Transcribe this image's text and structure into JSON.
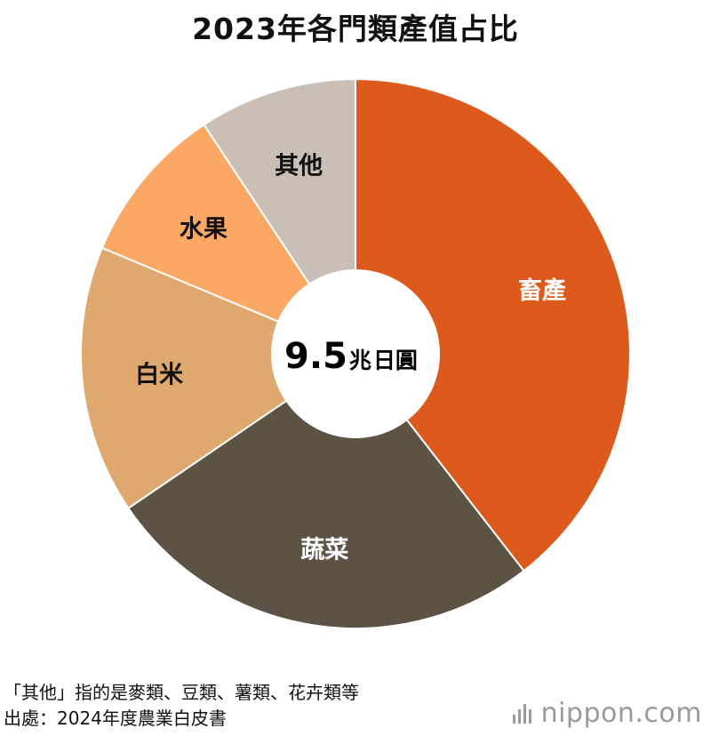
{
  "chart_data": {
    "type": "pie",
    "title": "2023年各門類產值占比",
    "categories": [
      "畜產",
      "蔬菜",
      "白米",
      "水果",
      "其他"
    ],
    "values": [
      39.5,
      26.0,
      15.8,
      9.4,
      9.3
    ],
    "colors": [
      "#dc5a1c",
      "#5c5345",
      "#dea86e",
      "#fca865",
      "#c9bfb7"
    ],
    "label_colors": [
      "#ffffff",
      "#ffffff",
      "#111111",
      "#111111",
      "#111111"
    ],
    "center_value": "9.5",
    "center_unit_1": "兆",
    "center_unit_2": "日圓"
  },
  "notes": {
    "line1": "「其他」指的是麥類、豆類、薯類、花卉類等",
    "line2": "出處：2024年度農業白皮書"
  },
  "brand": {
    "name": "nippon",
    "suffix": ".com"
  }
}
